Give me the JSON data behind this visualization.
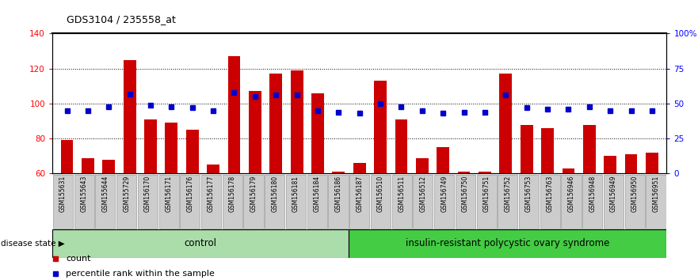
{
  "title": "GDS3104 / 235558_at",
  "categories": [
    "GSM155631",
    "GSM155643",
    "GSM155644",
    "GSM155729",
    "GSM156170",
    "GSM156171",
    "GSM156176",
    "GSM156177",
    "GSM156178",
    "GSM156179",
    "GSM156180",
    "GSM156181",
    "GSM156184",
    "GSM156186",
    "GSM156187",
    "GSM156510",
    "GSM156511",
    "GSM156512",
    "GSM156749",
    "GSM156750",
    "GSM156751",
    "GSM156752",
    "GSM156753",
    "GSM156763",
    "GSM156946",
    "GSM156948",
    "GSM156949",
    "GSM156950",
    "GSM156951"
  ],
  "bar_values": [
    79,
    69,
    68,
    125,
    91,
    89,
    85,
    65,
    127,
    107,
    117,
    119,
    106,
    61,
    66,
    113,
    91,
    69,
    75,
    61,
    61,
    117,
    88,
    86,
    63,
    88,
    70,
    71,
    72
  ],
  "dot_values_pct": [
    45,
    45,
    48,
    57,
    49,
    48,
    47,
    45,
    58,
    55,
    56,
    56,
    45,
    44,
    43,
    50,
    48,
    45,
    43,
    44,
    44,
    56,
    47,
    46,
    46,
    48,
    45,
    45,
    45
  ],
  "control_count": 14,
  "ylim_left": [
    60,
    140
  ],
  "ylim_right": [
    0,
    100
  ],
  "yticks_left": [
    60,
    80,
    100,
    120,
    140
  ],
  "yticks_right": [
    0,
    25,
    50,
    75,
    100
  ],
  "ytick_labels_right": [
    "0",
    "25",
    "50",
    "75",
    "100%"
  ],
  "bar_color": "#cc0000",
  "dot_color": "#0000cc",
  "control_label": "control",
  "disease_label": "insulin-resistant polycystic ovary syndrome",
  "control_bg": "#aaddaa",
  "disease_bg": "#44cc44",
  "legend_count": "count",
  "legend_pct": "percentile rank within the sample",
  "disease_state_label": "disease state"
}
